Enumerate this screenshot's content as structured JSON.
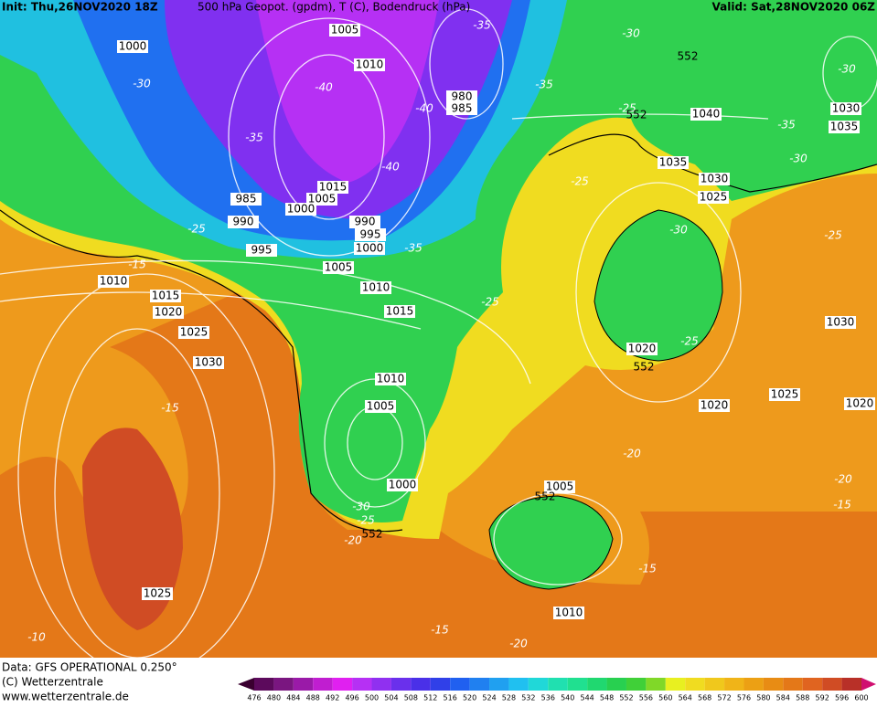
{
  "header": {
    "init": "Init: Thu,26NOV2020 18Z",
    "title": "500 hPa Geopot. (gpdm), T (C), Bodendruck (hPa)",
    "valid": "Valid: Sat,28NOV2020 06Z"
  },
  "isobar_labels": [
    1005,
    1010,
    1000,
    980,
    985,
    1015,
    1005,
    1000,
    985,
    990,
    995,
    990,
    995,
    1000,
    1005,
    1010,
    1015,
    1010,
    1015,
    1020,
    1025,
    1030,
    1010,
    1005,
    1000,
    1025,
    1040,
    1030,
    1035,
    1035,
    1030,
    1025,
    1020,
    1020,
    1025,
    1030,
    1020,
    1005,
    1010
  ],
  "temperature_labels": [
    -35,
    -30,
    -30,
    -40,
    -40,
    -35,
    -25,
    -35,
    -40,
    -30,
    -35,
    -30,
    -25,
    -25,
    -35,
    -30,
    -25,
    -15,
    -25,
    -25,
    -15,
    -20,
    -20,
    -15,
    -30,
    -25,
    -20,
    -15,
    -15,
    -20,
    -10
  ],
  "geopotential_labels": [
    552,
    552,
    552,
    552,
    552
  ],
  "footer": {
    "source": "Data: GFS OPERATIONAL 0.250°",
    "copyright": "(C) Wetterzentrale",
    "url": "www.wetterzentrale.de"
  },
  "colorbar": {
    "ticks": [
      476,
      480,
      484,
      488,
      492,
      496,
      500,
      504,
      508,
      512,
      516,
      520,
      524,
      528,
      532,
      536,
      540,
      544,
      548,
      552,
      556,
      560,
      564,
      568,
      572,
      576,
      580,
      584,
      588,
      592,
      596,
      600
    ],
    "colors": [
      "#3a0030",
      "#5c0a5c",
      "#7a1680",
      "#9a1aa8",
      "#c01ed0",
      "#e020f0",
      "#b630f4",
      "#9030f0",
      "#6a30ec",
      "#4a30e8",
      "#3040e8",
      "#2060f0",
      "#2080f0",
      "#20a0f0",
      "#20c0f0",
      "#20d8d8",
      "#20e0b0",
      "#20e090",
      "#20d870",
      "#28d050",
      "#40d038",
      "#80d828",
      "#e8f020",
      "#f0dc20",
      "#f0c81c",
      "#f0b418",
      "#eca014",
      "#e88c14",
      "#e47818",
      "#e06420",
      "#d04c24",
      "#b83028",
      "#d01070"
    ]
  }
}
